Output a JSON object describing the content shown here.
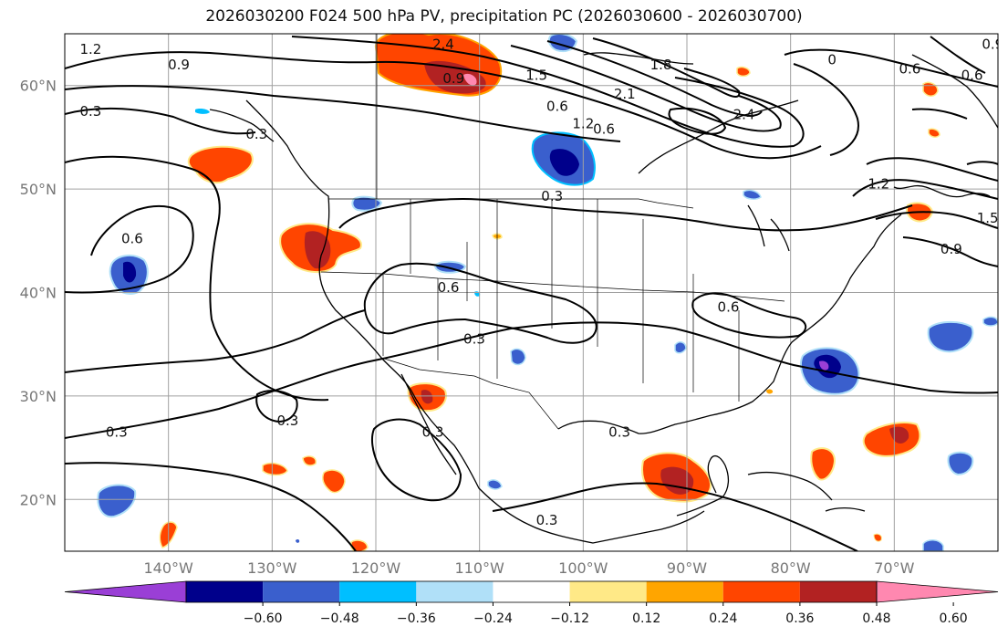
{
  "title": "2026030200 F024 500 hPa PV, precipitation PC (2026030600 - 2026030700)",
  "map": {
    "lon_range": [
      -150,
      -60
    ],
    "lat_range": [
      15,
      65
    ],
    "lon_ticks": [
      -140,
      -130,
      -120,
      -110,
      -100,
      -90,
      -80,
      -70
    ],
    "lat_ticks": [
      20,
      30,
      40,
      50,
      60
    ],
    "lon_tick_labels": [
      "140°W",
      "130°W",
      "120°W",
      "110°W",
      "100°W",
      "90°W",
      "80°W",
      "70°W"
    ],
    "lat_tick_labels": [
      "20°N",
      "30°N",
      "40°N",
      "50°N",
      "60°N"
    ],
    "grid": true
  },
  "colorbar": {
    "tick_labels": [
      "−0.60",
      "−0.48",
      "−0.36",
      "−0.24",
      "−0.12",
      "0.12",
      "0.24",
      "0.36",
      "0.48",
      "0.60"
    ],
    "colors": [
      "#9a3fd6",
      "#00008b",
      "#3a5fcd",
      "#00bfff",
      "#b0e0f8",
      "#ffffff",
      "#ffe987",
      "#ffa500",
      "#ff4500",
      "#b22222",
      "#ff88b0"
    ]
  },
  "contour_labels": [
    {
      "text": "1.2",
      "lon": -147.5,
      "lat": 63.5
    },
    {
      "text": "0.9",
      "lon": -139,
      "lat": 62
    },
    {
      "text": "2.4",
      "lon": -113.5,
      "lat": 64
    },
    {
      "text": "0.9",
      "lon": -112.5,
      "lat": 60.7
    },
    {
      "text": "1.5",
      "lon": -104.5,
      "lat": 61
    },
    {
      "text": "1.8",
      "lon": -92.5,
      "lat": 62
    },
    {
      "text": "2.1",
      "lon": -96,
      "lat": 59.2
    },
    {
      "text": "0.6",
      "lon": -102.5,
      "lat": 58
    },
    {
      "text": "1.2",
      "lon": -100,
      "lat": 56.3
    },
    {
      "text": "0.6",
      "lon": -98,
      "lat": 55.8
    },
    {
      "text": "2.4",
      "lon": -84.5,
      "lat": 57.2
    },
    {
      "text": "0",
      "lon": -76,
      "lat": 62.5
    },
    {
      "text": "0.6",
      "lon": -68.5,
      "lat": 61.6
    },
    {
      "text": "0.6",
      "lon": -62.5,
      "lat": 61
    },
    {
      "text": "0.9",
      "lon": -60.5,
      "lat": 64
    },
    {
      "text": "0.3",
      "lon": -147.5,
      "lat": 57.5
    },
    {
      "text": "0.3",
      "lon": -131.5,
      "lat": 55.3
    },
    {
      "text": "1.2",
      "lon": -71.5,
      "lat": 50.5
    },
    {
      "text": "1.5",
      "lon": -61,
      "lat": 47.2
    },
    {
      "text": "0.9",
      "lon": -64.5,
      "lat": 44.2
    },
    {
      "text": "0.3",
      "lon": -103,
      "lat": 49.3
    },
    {
      "text": "0.6",
      "lon": -143.5,
      "lat": 45.2
    },
    {
      "text": "0.6",
      "lon": -113,
      "lat": 40.5
    },
    {
      "text": "0.6",
      "lon": -86,
      "lat": 38.6
    },
    {
      "text": "0.3",
      "lon": -110.5,
      "lat": 35.5
    },
    {
      "text": "0.3",
      "lon": -145,
      "lat": 26.5
    },
    {
      "text": "0.3",
      "lon": -128.5,
      "lat": 27.6
    },
    {
      "text": "0.3",
      "lon": -114.5,
      "lat": 26.5
    },
    {
      "text": "0.3",
      "lon": -96.5,
      "lat": 26.5
    },
    {
      "text": "0.3",
      "lon": -103.5,
      "lat": 18
    }
  ]
}
